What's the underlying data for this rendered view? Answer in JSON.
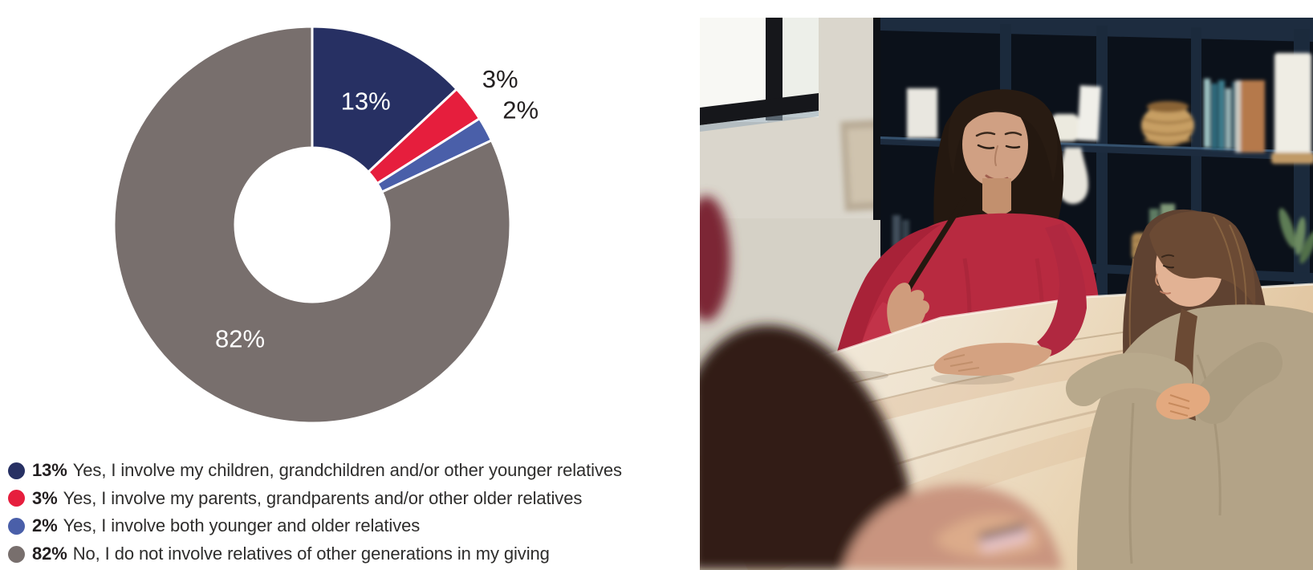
{
  "chart_data": {
    "type": "pie",
    "subtype": "donut",
    "title": "",
    "values": [
      13,
      3,
      2,
      82
    ],
    "labels": [
      "13%",
      "3%",
      "2%",
      "82%"
    ],
    "categories": [
      "Yes, I involve my children, grandchildren and/or other younger relatives",
      "Yes, I involve my parents, grandparents and/or other older relatives",
      "Yes, I involve both younger and older relatives",
      "No, I do not involve relatives of other generations in my giving"
    ],
    "colors": [
      "#273063",
      "#e61e3d",
      "#4a5fa9",
      "#786f6d"
    ],
    "hole_ratio": 0.39,
    "start_angle": "top",
    "direction": "clockwise",
    "separator_color": "#ffffff",
    "inside_label_color": "#ffffff",
    "outside_label_color": "#231f20",
    "legend_position": "bottom-left"
  },
  "legend": {
    "items": [
      {
        "pct": "13%",
        "label": "Yes, I involve my children, grandchildren and/or other younger relatives",
        "color": "#273063"
      },
      {
        "pct": "3%",
        "label": "Yes, I involve my parents, grandparents and/or other older relatives",
        "color": "#e61e3d"
      },
      {
        "pct": "2%",
        "label": "Yes, I involve both younger and older relatives",
        "color": "#4a5fa9"
      },
      {
        "pct": "82%",
        "label": "No, I do not involve relatives of other generations in my giving",
        "color": "#786f6d"
      }
    ]
  },
  "photo": {
    "alt": "A woman with long dark hair in a red top sits at a light wooden table in front of a dark blue bookshelf with books, baskets and vases, talking with a girl in a beige top; a second child with long dark hair and a pink top sits blurred in the foreground; a window lights the wall at left."
  }
}
